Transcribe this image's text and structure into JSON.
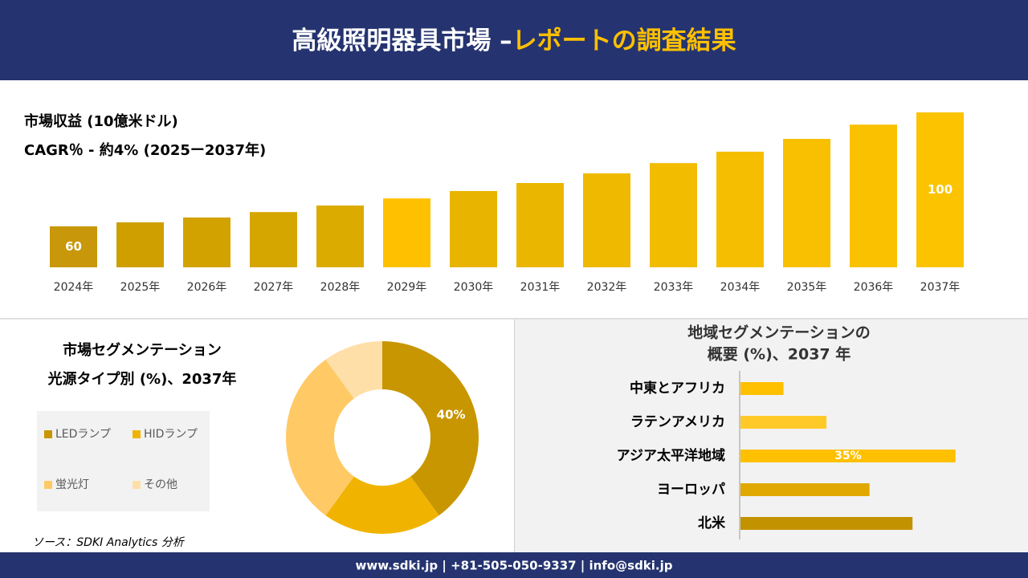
{
  "header": {
    "title": "高級照明器具市場 –",
    "highlight": "レポートの調査結果"
  },
  "source": "ソース：SDKI Analytics 分析",
  "footer": "www.sdki.jp | +81-505-050-9337 | info@sdki.jp",
  "chart_data": [
    {
      "type": "bar",
      "title": "市場収益 (10億米ドル)",
      "subtitle": "CAGR％ - 約4% (2025ー2037年)",
      "categories": [
        "2024年",
        "2025年",
        "2026年",
        "2027年",
        "2028年",
        "2029年",
        "2030年",
        "2031年",
        "2032年",
        "2033年",
        "2034年",
        "2035年",
        "2036年",
        "2037年"
      ],
      "values": [
        60,
        61.4,
        63.1,
        65,
        67.3,
        69.8,
        72.4,
        75.2,
        78.6,
        82.2,
        86.2,
        90.7,
        95.7,
        100
      ],
      "value_labels": [
        "60",
        null,
        null,
        null,
        null,
        null,
        null,
        null,
        null,
        null,
        null,
        null,
        null,
        "100"
      ],
      "colors": [
        "#c8980a",
        "#cf9f00",
        "#d2a200",
        "#d6a600",
        "#dcab00",
        "#ffc000",
        "#e8b400",
        "#ebb600",
        "#efb900",
        "#f2bc00",
        "#f5be00",
        "#f8c000",
        "#fac100",
        "#fcc300"
      ],
      "ylim": [
        45.6,
        100
      ]
    },
    {
      "type": "donut",
      "title": "市場セグメンテーション",
      "subtitle": "光源タイプ別 (%)、2037年",
      "categories": [
        "LEDランプ",
        "HIDランプ",
        "蛍光灯",
        "その他"
      ],
      "values": [
        40,
        20,
        30,
        10
      ],
      "value_labels": [
        "40%",
        null,
        null,
        null
      ],
      "colors": [
        "#c89600",
        "#f0b400",
        "#ffc965",
        "#ffdfa8"
      ],
      "legend": "left"
    },
    {
      "type": "barh",
      "title": "地域セグメンテーションの",
      "subtitle": "概要 (%)、2037 年",
      "categories": [
        "中東とアフリカ",
        "ラテンアメリカ",
        "アジア太平洋地域",
        "ヨーロッパ",
        "北米"
      ],
      "values": [
        7,
        14,
        35,
        21,
        28
      ],
      "value_labels": [
        null,
        null,
        "35%",
        null,
        null
      ],
      "colors": [
        "#ffc000",
        "#ffca28",
        "#ffc000",
        "#e0a800",
        "#c39200"
      ],
      "xlim": [
        0,
        40
      ]
    }
  ]
}
